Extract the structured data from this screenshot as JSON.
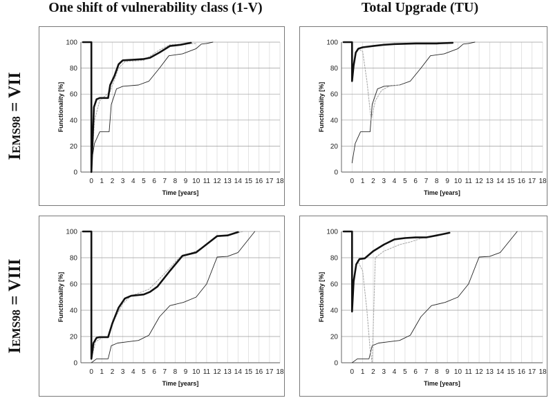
{
  "titles": {
    "col1": "One shift of vulnerability class (1-V)",
    "col2": "Total Upgrade (TU)",
    "row1_main": "I",
    "row1_sub": "EMS98",
    "row1_rest": " = VII",
    "row2_main": "I",
    "row2_sub": "EMS98",
    "row2_rest": " = VIII"
  },
  "colors": {
    "main": "#111111",
    "dotted": "#aaaaaa",
    "thin": "#222222"
  },
  "chart_data": [
    {
      "type": "line",
      "xlabel": "Time [years]",
      "ylabel": "Functionality [%]",
      "xlim": [
        -1,
        18
      ],
      "ylim": [
        0,
        100
      ],
      "xticks": [
        0,
        1,
        2,
        3,
        4,
        5,
        6,
        7,
        8,
        9,
        10,
        11,
        12,
        13,
        14,
        15,
        16,
        17,
        18
      ],
      "yticks": [
        0,
        20,
        40,
        60,
        80,
        100
      ],
      "series": [
        {
          "style": "bold",
          "points": [
            [
              -0.8,
              100
            ],
            [
              0,
              100
            ],
            [
              0,
              0
            ],
            [
              0.1,
              20
            ],
            [
              0.25,
              50
            ],
            [
              0.5,
              56
            ],
            [
              0.8,
              57
            ],
            [
              1.6,
              57
            ],
            [
              1.8,
              67
            ],
            [
              2.2,
              74
            ],
            [
              2.6,
              83
            ],
            [
              3.0,
              86
            ],
            [
              4.0,
              86.5
            ],
            [
              5.0,
              87
            ],
            [
              5.6,
              88
            ],
            [
              6.5,
              92
            ],
            [
              7.5,
              97
            ],
            [
              8.5,
              98
            ],
            [
              9.5,
              99.5
            ]
          ]
        },
        {
          "style": "dotted",
          "points": [
            [
              0,
              0
            ],
            [
              0.3,
              40
            ],
            [
              0.8,
              55
            ],
            [
              1.8,
              62
            ],
            [
              2.6,
              80
            ],
            [
              3.2,
              85
            ],
            [
              5.0,
              86
            ],
            [
              6.5,
              94
            ],
            [
              7.5,
              98
            ],
            [
              10.0,
              99
            ]
          ]
        },
        {
          "style": "thin",
          "points": [
            [
              0,
              7
            ],
            [
              0.3,
              22
            ],
            [
              0.8,
              31
            ],
            [
              1.7,
              31
            ],
            [
              1.9,
              52
            ],
            [
              2.4,
              64
            ],
            [
              3.0,
              66
            ],
            [
              4.5,
              67
            ],
            [
              5.5,
              70
            ],
            [
              6.5,
              80
            ],
            [
              7.4,
              89.5
            ],
            [
              8.7,
              91
            ],
            [
              10.0,
              95
            ],
            [
              10.5,
              98.5
            ],
            [
              11.0,
              99
            ],
            [
              11.6,
              100
            ]
          ]
        }
      ]
    },
    {
      "type": "line",
      "xlabel": "Time [years]",
      "ylabel": "Functionality [%]",
      "xlim": [
        -1,
        18
      ],
      "ylim": [
        0,
        100
      ],
      "xticks": [
        0,
        1,
        2,
        3,
        4,
        5,
        6,
        7,
        8,
        9,
        10,
        11,
        12,
        13,
        14,
        15,
        16,
        17,
        18
      ],
      "yticks": [
        0,
        20,
        40,
        60,
        80,
        100
      ],
      "series": [
        {
          "style": "bold",
          "points": [
            [
              -0.8,
              100
            ],
            [
              0,
              100
            ],
            [
              0,
              70
            ],
            [
              0.15,
              82
            ],
            [
              0.35,
              92
            ],
            [
              0.6,
              95
            ],
            [
              1.0,
              96
            ],
            [
              2.0,
              97
            ],
            [
              3.0,
              98
            ],
            [
              4.0,
              98.5
            ],
            [
              6.0,
              99
            ],
            [
              8.0,
              99
            ],
            [
              9.5,
              99.5
            ]
          ]
        },
        {
          "style": "dotted",
          "points": [
            [
              0.5,
              95
            ],
            [
              1.0,
              93
            ],
            [
              1.4,
              70
            ],
            [
              1.8,
              40
            ],
            [
              2.2,
              55
            ],
            [
              2.8,
              63
            ],
            [
              3.5,
              66
            ],
            [
              4.5,
              67
            ]
          ]
        },
        {
          "style": "thin",
          "points": [
            [
              0,
              7
            ],
            [
              0.3,
              22
            ],
            [
              0.8,
              31
            ],
            [
              1.7,
              31
            ],
            [
              1.9,
              52
            ],
            [
              2.4,
              64
            ],
            [
              3.0,
              66
            ],
            [
              4.5,
              67
            ],
            [
              5.5,
              70
            ],
            [
              6.5,
              80
            ],
            [
              7.4,
              89.5
            ],
            [
              8.7,
              91
            ],
            [
              10.0,
              95
            ],
            [
              10.5,
              98.5
            ],
            [
              11.0,
              99
            ],
            [
              11.6,
              100
            ]
          ]
        }
      ]
    },
    {
      "type": "line",
      "xlabel": "Time [years]",
      "ylabel": "Functionality [%]",
      "xlim": [
        -1,
        18
      ],
      "ylim": [
        0,
        100
      ],
      "xticks": [
        0,
        1,
        2,
        3,
        4,
        5,
        6,
        7,
        8,
        9,
        10,
        11,
        12,
        13,
        14,
        15,
        16,
        17,
        18
      ],
      "yticks": [
        0,
        20,
        40,
        60,
        80,
        100
      ],
      "series": [
        {
          "style": "bold",
          "points": [
            [
              -0.8,
              100
            ],
            [
              0,
              100
            ],
            [
              0,
              3
            ],
            [
              0.2,
              15
            ],
            [
              0.5,
              19
            ],
            [
              0.8,
              19.5
            ],
            [
              1.6,
              19.5
            ],
            [
              2.0,
              30
            ],
            [
              2.6,
              42
            ],
            [
              3.2,
              49
            ],
            [
              3.8,
              51
            ],
            [
              5.0,
              52
            ],
            [
              5.6,
              54
            ],
            [
              6.3,
              58
            ],
            [
              7.5,
              70
            ],
            [
              8.7,
              81.5
            ],
            [
              10.0,
              84
            ],
            [
              10.8,
              89
            ],
            [
              12.0,
              96.5
            ],
            [
              13.0,
              97
            ],
            [
              14.0,
              99.5
            ]
          ]
        },
        {
          "style": "dotted",
          "points": [
            [
              0,
              3
            ],
            [
              0.4,
              16
            ],
            [
              1.0,
              19
            ],
            [
              1.6,
              20
            ],
            [
              2.2,
              33
            ],
            [
              3.0,
              45
            ],
            [
              3.8,
              51
            ],
            [
              5.5,
              56
            ],
            [
              7.0,
              68
            ],
            [
              8.5,
              81
            ],
            [
              10.0,
              85
            ],
            [
              11.0,
              90
            ],
            [
              12.0,
              96
            ],
            [
              13.0,
              97
            ],
            [
              14.5,
              100
            ]
          ]
        },
        {
          "style": "thin",
          "points": [
            [
              0,
              0
            ],
            [
              0.5,
              3
            ],
            [
              1.6,
              3
            ],
            [
              1.9,
              13
            ],
            [
              2.5,
              15
            ],
            [
              3.5,
              16
            ],
            [
              4.5,
              17
            ],
            [
              5.5,
              21
            ],
            [
              6.5,
              35
            ],
            [
              7.5,
              43.5
            ],
            [
              8.8,
              46
            ],
            [
              10.0,
              50
            ],
            [
              11.0,
              60
            ],
            [
              12.0,
              80.5
            ],
            [
              13.0,
              81
            ],
            [
              14.0,
              84
            ],
            [
              15.6,
              100
            ]
          ]
        }
      ]
    },
    {
      "type": "line",
      "xlabel": "Time [years]",
      "ylabel": "Functionality [%]",
      "xlim": [
        -1,
        18
      ],
      "ylim": [
        0,
        100
      ],
      "xticks": [
        0,
        1,
        2,
        3,
        4,
        5,
        6,
        7,
        8,
        9,
        10,
        11,
        12,
        13,
        14,
        15,
        16,
        17,
        18
      ],
      "yticks": [
        0,
        20,
        40,
        60,
        80,
        100
      ],
      "series": [
        {
          "style": "bold",
          "points": [
            [
              -0.8,
              100
            ],
            [
              0,
              100
            ],
            [
              0,
              39
            ],
            [
              0.15,
              62
            ],
            [
              0.4,
              75
            ],
            [
              0.7,
              79
            ],
            [
              1.2,
              79.5
            ],
            [
              2.0,
              85
            ],
            [
              3.0,
              90
            ],
            [
              4.0,
              94
            ],
            [
              5.0,
              95
            ],
            [
              6.0,
              95.5
            ],
            [
              7.0,
              95.5
            ],
            [
              8.0,
              97
            ],
            [
              9.2,
              99
            ]
          ]
        },
        {
          "style": "dotted",
          "points": [
            [
              0.5,
              78
            ],
            [
              1.0,
              70
            ],
            [
              1.4,
              40
            ],
            [
              1.7,
              10
            ],
            [
              1.9,
              0
            ],
            [
              2.2,
              80
            ],
            [
              3.0,
              85
            ],
            [
              4.5,
              90
            ],
            [
              5.5,
              92
            ],
            [
              7.0,
              96
            ]
          ]
        },
        {
          "style": "thin",
          "points": [
            [
              0,
              0
            ],
            [
              0.5,
              3
            ],
            [
              1.6,
              3
            ],
            [
              1.9,
              13
            ],
            [
              2.5,
              15
            ],
            [
              3.5,
              16
            ],
            [
              4.5,
              17
            ],
            [
              5.5,
              21
            ],
            [
              6.5,
              35
            ],
            [
              7.5,
              43.5
            ],
            [
              8.8,
              46
            ],
            [
              10.0,
              50
            ],
            [
              11.0,
              60
            ],
            [
              12.0,
              80.5
            ],
            [
              13.0,
              81
            ],
            [
              14.0,
              84
            ],
            [
              15.6,
              100
            ]
          ]
        }
      ]
    }
  ]
}
